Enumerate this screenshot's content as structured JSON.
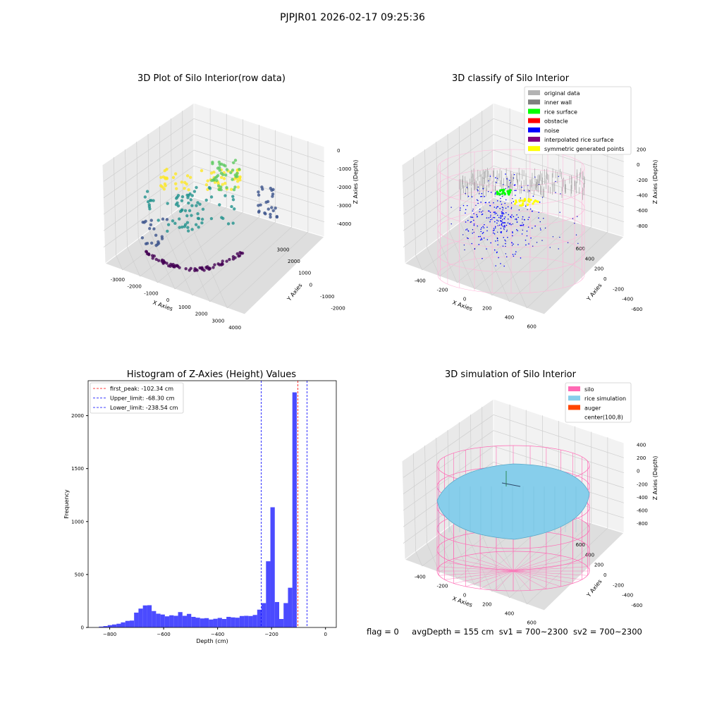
{
  "figure": {
    "title": "PJPJR01 2026-02-17 09:25:36",
    "footer": {
      "flag": "flag = 0",
      "avgDepth": "avgDepth = 155 cm",
      "sv1": "sv1 = 700~2300",
      "sv2": "sv2 = 700~2300"
    }
  },
  "chart_data": [
    {
      "type": "scatter",
      "title": "3D Plot of Silo Interior(row data)",
      "xlabel": "X Axies",
      "ylabel": "Y Axies",
      "zlabel": "Z Axies (Depth)",
      "xticks": [
        "-3000",
        "-2000",
        "-1000",
        "0",
        "1000",
        "2000",
        "3000",
        "4000"
      ],
      "yticks": [
        "-2000",
        "-1000",
        "0",
        "1000",
        "2000",
        "3000"
      ],
      "zticks": [
        "0",
        "-1000",
        "-2000",
        "-3000",
        "-4000"
      ],
      "xlim": [
        -3000,
        4000
      ],
      "ylim": [
        -2500,
        3500
      ],
      "zlim": [
        -4500,
        0
      ],
      "colormap": "viridis",
      "grid": true
    },
    {
      "type": "scatter",
      "title": "3D classify of Silo Interior",
      "zlabel": "Z Axies (Depth)",
      "xlabel": "X Axies",
      "ylabel": "Y Axies",
      "xticks": [
        "-400",
        "-200",
        "0",
        "200",
        "400",
        "600"
      ],
      "yticks": [
        "-600",
        "-400",
        "-200",
        "0",
        "200",
        "400",
        "600"
      ],
      "zticks": [
        "200",
        "0",
        "-200",
        "-400",
        "-600",
        "-800"
      ],
      "legend_position": "top-right",
      "grid": true,
      "legend": [
        {
          "label": "original data",
          "color": "#b3b3b3"
        },
        {
          "label": "inner wall",
          "color": "#808080"
        },
        {
          "label": "rice surface",
          "color": "#00ff00"
        },
        {
          "label": "obstacle",
          "color": "#ff0000"
        },
        {
          "label": "noise",
          "color": "#0000ff"
        },
        {
          "label": "interpolated rice surface",
          "color": "#800080"
        },
        {
          "label": "symmetric generated points",
          "color": "#ffff00"
        }
      ]
    },
    {
      "type": "bar",
      "title": "Histogram of Z-Axies (Height) Values",
      "xlabel": "Depth (cm)",
      "ylabel": "Frequency",
      "xlim": [
        -880,
        40
      ],
      "ylim": [
        0,
        2330
      ],
      "xticks": [
        -800,
        -600,
        -400,
        -200,
        0
      ],
      "yticks": [
        0,
        500,
        1000,
        1500,
        2000
      ],
      "bar_color": "#4b4bff",
      "bin_width": 16.3,
      "bins_start": -840,
      "values": [
        8,
        13,
        22,
        28,
        35,
        48,
        62,
        65,
        140,
        178,
        208,
        210,
        155,
        130,
        122,
        105,
        115,
        110,
        145,
        110,
        128,
        100,
        92,
        85,
        88,
        75,
        82,
        90,
        80,
        100,
        95,
        92,
        108,
        110,
        108,
        118,
        168,
        230,
        625,
        1135,
        240,
        80,
        230,
        375,
        2220
      ],
      "lines": [
        {
          "label": "first_peak: -102.34 cm",
          "x": -102.34,
          "color": "#ff0000"
        },
        {
          "label": "Upper_limit: -68.30 cm",
          "x": -68.3,
          "color": "#0000ff"
        },
        {
          "label": "Lower_limit: -238.54 cm",
          "x": -238.54,
          "color": "#0000ff"
        }
      ],
      "legend_position": "top-left",
      "grid": false
    },
    {
      "type": "scatter",
      "title": "3D simulation of Silo Interior",
      "xlabel": "X Axies",
      "ylabel": "Y Axies",
      "zlabel": "Z Axies (Depth)",
      "xticks": [
        "-400",
        "-200",
        "0",
        "200",
        "400",
        "600"
      ],
      "yticks": [
        "-600",
        "-400",
        "-200",
        "0",
        "200",
        "400",
        "600"
      ],
      "zticks": [
        "400",
        "200",
        "0",
        "-200",
        "-400",
        "-600",
        "-800"
      ],
      "legend_position": "top-right",
      "grid": true,
      "legend": [
        {
          "label": "silo",
          "color": "#ff69b4"
        },
        {
          "label": "rice simulation",
          "color": "#87ceeb"
        },
        {
          "label": "auger",
          "color": "#ff4500"
        },
        {
          "label": "center(100,8)",
          "color": "#ffffff"
        }
      ]
    }
  ]
}
